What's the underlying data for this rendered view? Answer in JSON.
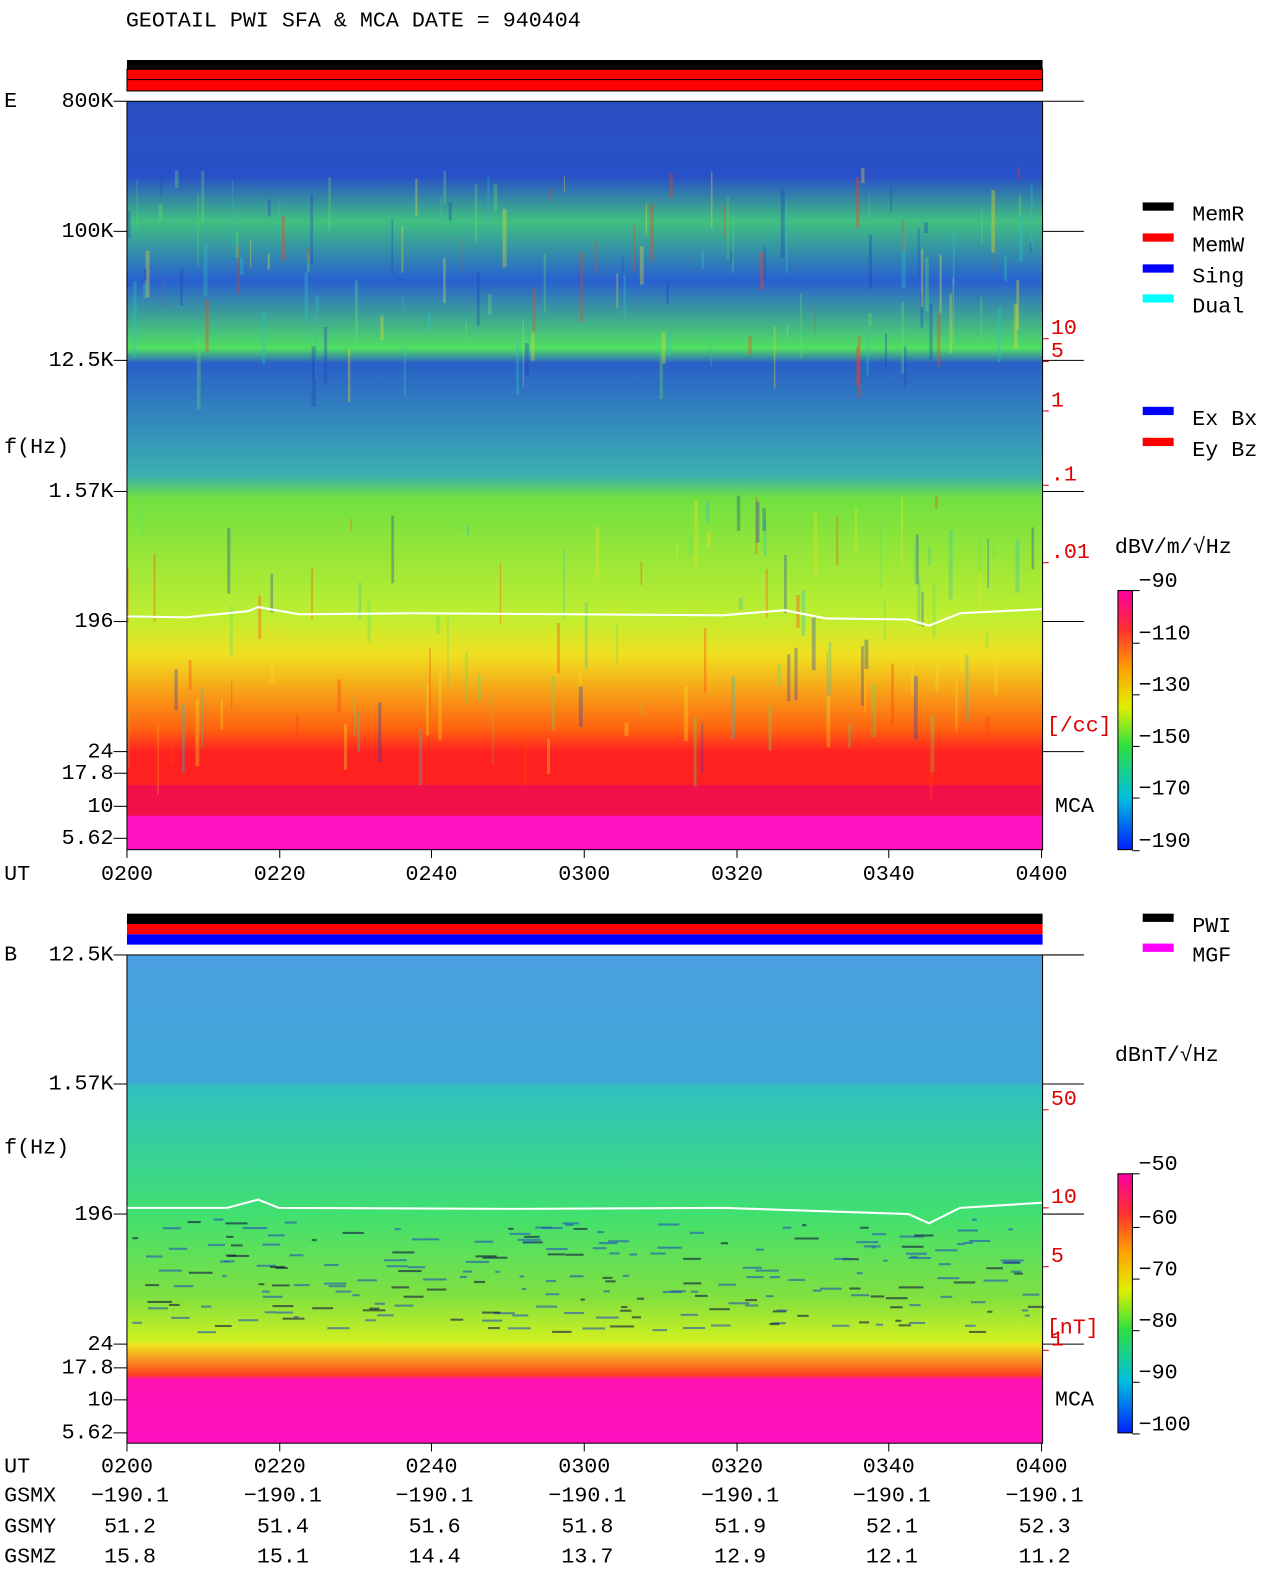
{
  "header": {
    "title": "GEOTAIL  PWI SFA & MCA  DATE = 940404"
  },
  "panels": [
    {
      "label": "E",
      "y_label": "f(Hz)",
      "y_ticks": [
        "800K",
        "100K",
        "12.5K",
        "1.57K",
        "196",
        "24",
        "17.8",
        "10",
        "5.62"
      ],
      "density_ticks": [
        "10",
        "5",
        "1",
        ".1",
        ".01"
      ],
      "density_unit": "[/cc]",
      "mca": "MCA",
      "x_label": "UT",
      "x_ticks": [
        "0200",
        "0220",
        "0240",
        "0300",
        "0320",
        "0340",
        "0400"
      ],
      "legend": [
        {
          "name": "MemR",
          "color": "#000000"
        },
        {
          "name": "MemW",
          "color": "#ff0000"
        },
        {
          "name": "Sing",
          "color": "#0000ff"
        },
        {
          "name": "Dual",
          "color": "#00ffff"
        },
        {
          "name": "Ex Bx",
          "color": "#0000ff"
        },
        {
          "name": "Ey Bz",
          "color": "#ff0000"
        }
      ],
      "colorbar": {
        "unit": "dBV/m/√Hz",
        "ticks": [
          "−90",
          "−110",
          "−130",
          "−150",
          "−170",
          "−190"
        ]
      }
    },
    {
      "label": "B",
      "y_label": "f(Hz)",
      "y_ticks": [
        "12.5K",
        "1.57K",
        "196",
        "24",
        "17.8",
        "10",
        "5.62"
      ],
      "density_ticks": [
        "50",
        "10",
        "5",
        "1"
      ],
      "density_unit": "[nT]",
      "mca": "MCA",
      "x_label": "UT",
      "x_ticks": [
        "0200",
        "0220",
        "0240",
        "0300",
        "0320",
        "0340",
        "0400"
      ],
      "legend": [
        {
          "name": "PWI",
          "color": "#000000"
        },
        {
          "name": "MGF",
          "color": "#ff00ff"
        }
      ],
      "colorbar": {
        "unit": "dBnT/√Hz",
        "ticks": [
          "−50",
          "−60",
          "−70",
          "−80",
          "−90",
          "−100"
        ]
      }
    }
  ],
  "orbit": {
    "rows": [
      {
        "label": "GSMX",
        "values": [
          "−190.1",
          "−190.1",
          "−190.1",
          "−190.1",
          "−190.1",
          "−190.1",
          "−190.1"
        ]
      },
      {
        "label": "GSMY",
        "values": [
          "51.2",
          "51.4",
          "51.6",
          "51.8",
          "51.9",
          "52.1",
          "52.3"
        ]
      },
      {
        "label": "GSMZ",
        "values": [
          "15.8",
          "15.1",
          "14.4",
          "13.7",
          "12.9",
          "12.1",
          "11.2"
        ]
      }
    ]
  }
}
